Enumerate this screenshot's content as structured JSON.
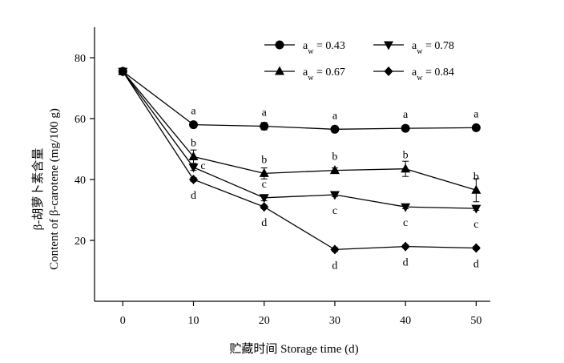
{
  "chart_data": {
    "type": "line",
    "xlabel": "贮藏时间 Storage time (d)",
    "ylabel_cn": "β-胡萝卜素含量",
    "ylabel_en": "Content of β-carotene (mg/100 g)",
    "x": [
      0,
      10,
      20,
      30,
      40,
      50
    ],
    "xlim": [
      -4,
      52
    ],
    "ylim": [
      0,
      90
    ],
    "xticks": [
      "0",
      "10",
      "20",
      "30",
      "40",
      "50"
    ],
    "yticks": [
      "20",
      "40",
      "60",
      "80"
    ],
    "legend": "top-right",
    "grid": false,
    "series": [
      {
        "name_prefix": "a",
        "name_sub": "w",
        "name_suffix": " = 0.43",
        "marker": "circle",
        "values": [
          75.5,
          58.0,
          57.5,
          56.5,
          56.8,
          57.0
        ],
        "errors": [
          0,
          0.8,
          1.2,
          0.6,
          0.6,
          0.5
        ],
        "labels": [
          "",
          "a",
          "a",
          "a",
          "a",
          "a"
        ],
        "label_pos": [
          "",
          "above",
          "above",
          "above",
          "above",
          "above"
        ]
      },
      {
        "name_prefix": "a",
        "name_sub": "w",
        "name_suffix": " = 0.78",
        "marker": "triangle-down",
        "values": [
          75.5,
          44.0,
          34.0,
          35.0,
          31.0,
          30.5
        ],
        "errors": [
          0,
          1.0,
          1.0,
          0.6,
          0.6,
          0.6
        ],
        "labels": [
          "",
          "c",
          "c",
          "c",
          "c",
          "c"
        ],
        "label_pos": [
          "",
          "right",
          "above",
          "below",
          "below",
          "below"
        ]
      },
      {
        "name_prefix": "a",
        "name_sub": "w",
        "name_suffix": " = 0.67",
        "marker": "triangle-up",
        "values": [
          75.5,
          47.5,
          42.0,
          43.0,
          43.5,
          36.5
        ],
        "errors": [
          0,
          2.2,
          1.8,
          0.8,
          2.5,
          3.8
        ],
        "labels": [
          "",
          "b",
          "b",
          "b",
          "b",
          "b"
        ],
        "label_pos": [
          "",
          "above",
          "above",
          "above",
          "above",
          "above"
        ]
      },
      {
        "name_prefix": "a",
        "name_sub": "w",
        "name_suffix": " = 0.84",
        "marker": "diamond",
        "values": [
          75.5,
          40.0,
          31.0,
          17.0,
          18.0,
          17.5
        ],
        "errors": [
          0,
          0.6,
          0.6,
          0.6,
          0.5,
          0.5
        ],
        "labels": [
          "",
          "d",
          "d",
          "d",
          "d",
          "d"
        ],
        "label_pos": [
          "",
          "below",
          "below",
          "below",
          "below",
          "below"
        ]
      }
    ]
  }
}
